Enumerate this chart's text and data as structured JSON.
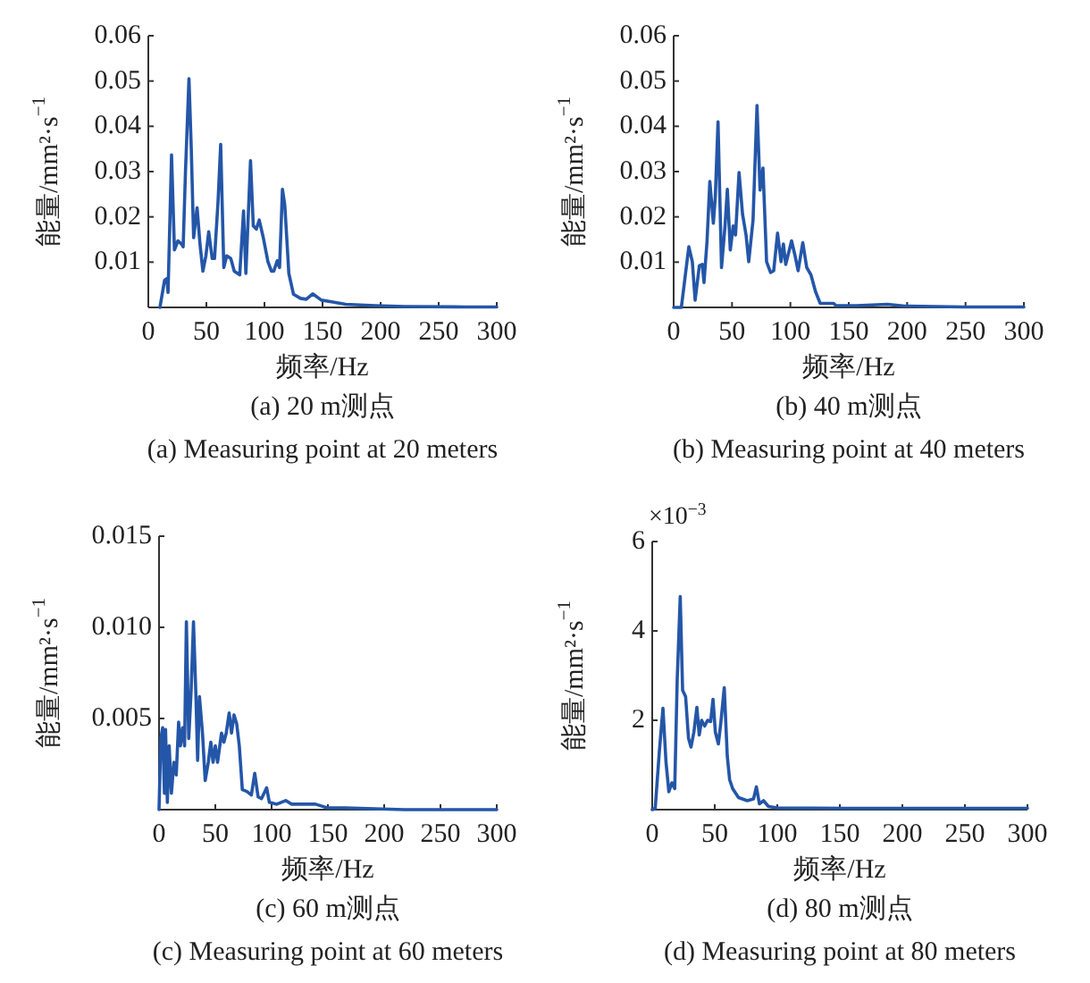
{
  "chart_data": [
    {
      "type": "line",
      "title": "(a) 20 m测点",
      "subtitle": "(a) Measuring point at 20 meters",
      "xlabel": "频率/Hz",
      "ylabel": "能量/mm²·s$^{−1}$",
      "xlim": [
        0,
        300
      ],
      "xticks": [
        0,
        50,
        100,
        150,
        200,
        250,
        300
      ],
      "ylim": [
        0,
        0.06
      ],
      "yticks": [
        0.01,
        0.02,
        0.03,
        0.04,
        0.05,
        0.06
      ],
      "color": "#2456a8",
      "x": [
        10,
        14,
        16,
        17,
        20,
        22.5,
        25.5,
        28.6,
        30,
        32,
        35,
        37,
        39,
        42,
        44.5,
        47,
        49.6,
        52,
        55,
        57,
        60,
        62.3,
        65,
        67.5,
        71,
        74,
        78.7,
        82,
        84,
        88,
        90.4,
        93,
        95.5,
        99,
        103,
        106,
        108,
        111,
        113,
        115.5,
        117.5,
        121,
        125,
        131,
        136,
        141.5,
        149,
        159,
        170,
        195,
        221,
        272,
        300
      ],
      "values": [
        0.0,
        0.006,
        0.0064,
        0.0033,
        0.0337,
        0.0127,
        0.0147,
        0.014,
        0.0134,
        0.03,
        0.0505,
        0.035,
        0.0154,
        0.022,
        0.014,
        0.008,
        0.0114,
        0.0167,
        0.0108,
        0.0108,
        0.0232,
        0.036,
        0.0088,
        0.0114,
        0.0108,
        0.008,
        0.0072,
        0.0213,
        0.0075,
        0.0324,
        0.018,
        0.0173,
        0.0193,
        0.0154,
        0.0101,
        0.008,
        0.008,
        0.0103,
        0.0088,
        0.0261,
        0.0226,
        0.0075,
        0.0029,
        0.002,
        0.0018,
        0.003,
        0.0016,
        0.0012,
        0.0007,
        0.0004,
        0.0002,
        0.0001,
        0.0001
      ]
    },
    {
      "type": "line",
      "title": "(b) 40 m测点",
      "subtitle": "(b) Measuring point at 40 meters",
      "xlabel": "频率/Hz",
      "ylabel": "能量/mm²·s$^{−1}$",
      "xlim": [
        0,
        300
      ],
      "xticks": [
        0,
        50,
        100,
        150,
        200,
        250,
        300
      ],
      "ylim": [
        0,
        0.06
      ],
      "yticks": [
        0.01,
        0.02,
        0.03,
        0.04,
        0.05,
        0.06
      ],
      "color": "#2456a8",
      "x": [
        0,
        6.6,
        13,
        16,
        18.4,
        22,
        24.5,
        26,
        28.6,
        31,
        34,
        35.7,
        38,
        41,
        44,
        46,
        48.5,
        51,
        53,
        56,
        59,
        62,
        64.3,
        68,
        71.4,
        74,
        76.5,
        79.6,
        83,
        85.7,
        89,
        92,
        94,
        96,
        101,
        104,
        106.6,
        110.6,
        114,
        117.6,
        121.5,
        125.5,
        137,
        139,
        157,
        183,
        198,
        249,
        300
      ],
      "values": [
        0,
        0,
        0.0134,
        0.0101,
        0.0016,
        0.0092,
        0.0095,
        0.0055,
        0.0147,
        0.0278,
        0.0186,
        0.0245,
        0.041,
        0.0088,
        0.018,
        0.0261,
        0.0127,
        0.018,
        0.016,
        0.0298,
        0.0206,
        0.016,
        0.0101,
        0.0193,
        0.0446,
        0.0259,
        0.0308,
        0.0101,
        0.0077,
        0.0081,
        0.0164,
        0.0101,
        0.014,
        0.0095,
        0.0147,
        0.0114,
        0.0081,
        0.0143,
        0.0088,
        0.0072,
        0.0035,
        0.0009,
        0.0009,
        0.0004,
        0.0004,
        0.0007,
        0.0003,
        0.0001,
        0.0001
      ]
    },
    {
      "type": "line",
      "title": "(c) 60 m测点",
      "subtitle": "(c) Measuring point at 60 meters",
      "xlabel": "频率/Hz",
      "ylabel": "能量/mm²·s$^{−1}$",
      "xlim": [
        0,
        300
      ],
      "xticks": [
        0,
        50,
        100,
        150,
        200,
        250,
        300
      ],
      "ylim": [
        0,
        0.015
      ],
      "yticks": [
        0.005,
        {
          "value": 0.01,
          "label": "0.010"
        },
        0.015
      ],
      "color": "#2456a8",
      "x": [
        0,
        1.6,
        3.2,
        4.8,
        5.8,
        7.4,
        9,
        11,
        13.2,
        15.3,
        17.4,
        19,
        21,
        22.7,
        24.3,
        26.4,
        28.5,
        30.6,
        32.8,
        34.3,
        35.9,
        38.6,
        41,
        43.8,
        46,
        48,
        50,
        52,
        55.5,
        57.6,
        59.7,
        62.3,
        64.4,
        66.6,
        69,
        71.3,
        74,
        78,
        82,
        85,
        88,
        91,
        95.6,
        98,
        104.6,
        112.5,
        117.8,
        139,
        149.5,
        165,
        218,
        300
      ],
      "values": [
        0,
        0.0039,
        0.0045,
        0.0009,
        0.0044,
        0.0004,
        0.0035,
        0.0009,
        0.0026,
        0.0019,
        0.0048,
        0.0035,
        0.0045,
        0.0035,
        0.0103,
        0.0039,
        0.0065,
        0.0103,
        0.0062,
        0.0027,
        0.0062,
        0.0042,
        0.0016,
        0.0026,
        0.0037,
        0.0026,
        0.0035,
        0.0026,
        0.0042,
        0.0037,
        0.0042,
        0.0053,
        0.0042,
        0.0052,
        0.0047,
        0.0035,
        0.0011,
        0.001,
        0.0008,
        0.002,
        0.0007,
        0.0006,
        0.0012,
        0.0004,
        0.0003,
        0.0005,
        0.0003,
        0.0003,
        0.0001,
        0.0001,
        0.0,
        0.0
      ]
    },
    {
      "type": "line",
      "title": "(d) 80 m测点",
      "subtitle": "(d) Measuring point at 80 meters",
      "xlabel": "频率/Hz",
      "ylabel": "能量/mm²·s$^{−1}$",
      "annotations": [
        "×10$^{−3}$"
      ],
      "xlim": [
        0,
        300
      ],
      "xticks": [
        0,
        50,
        100,
        150,
        200,
        250,
        300
      ],
      "ylim": [
        0,
        6
      ],
      "yticks": [
        2,
        4,
        6
      ],
      "color": "#2456a8",
      "x": [
        0,
        2.4,
        5.7,
        8.6,
        11,
        13.3,
        15.7,
        18,
        20,
        22.4,
        24.3,
        26.7,
        29,
        31,
        33.3,
        35.7,
        37.6,
        39.5,
        41.9,
        44.3,
        46.7,
        48.6,
        50.5,
        52.9,
        54.8,
        57.6,
        60,
        61.9,
        64.3,
        69,
        76,
        81,
        83.3,
        85.7,
        89,
        93,
        100,
        155,
        300
      ],
      "values": [
        0,
        0.03,
        1.3,
        2.27,
        1.07,
        0.4,
        0.6,
        0.47,
        2.93,
        4.77,
        2.67,
        2.53,
        1.6,
        1.4,
        1.73,
        2.29,
        1.67,
        2.0,
        1.87,
        2.0,
        1.97,
        2.47,
        1.73,
        1.47,
        1.93,
        2.73,
        1.2,
        0.67,
        0.47,
        0.27,
        0.2,
        0.24,
        0.51,
        0.13,
        0.2,
        0.07,
        0.04,
        0.03,
        0.03
      ]
    }
  ]
}
